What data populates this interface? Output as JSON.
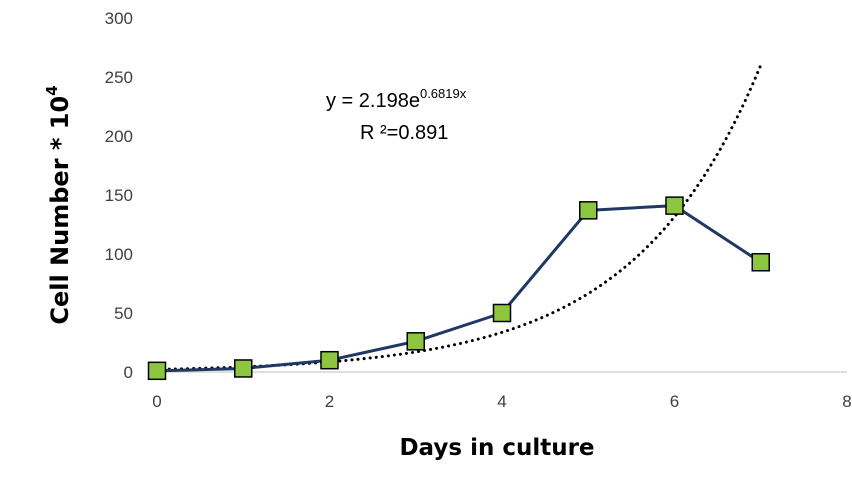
{
  "chart_data": {
    "type": "scatter",
    "title": "",
    "xlabel": "Days in culture",
    "ylabel": "Cell Number * 10",
    "ylabel_exponent": "4",
    "xlim": [
      0,
      8
    ],
    "ylim": [
      0,
      300
    ],
    "x_ticks": [
      0,
      2,
      4,
      6,
      8
    ],
    "y_ticks": [
      0,
      50,
      100,
      150,
      200,
      250,
      300
    ],
    "grid": false,
    "legend": "none",
    "series": [
      {
        "x": [
          0,
          1,
          2,
          3,
          4,
          5,
          6,
          7
        ],
        "y": [
          1,
          3,
          10,
          26,
          50,
          137,
          141,
          93
        ],
        "line_color": "#1f3864",
        "marker": "square",
        "marker_fill": "#8cc63f",
        "marker_edge": "#000000"
      }
    ],
    "trendline": {
      "kind": "exponential",
      "a": 2.198,
      "b": 0.6819,
      "x_range": [
        0,
        7
      ],
      "style": "dotted",
      "color": "#000000"
    },
    "annotations": {
      "equation_prefix": "y = 2.198e",
      "equation_exponent": "0.6819x",
      "r_squared": "R ²=0.891"
    }
  }
}
